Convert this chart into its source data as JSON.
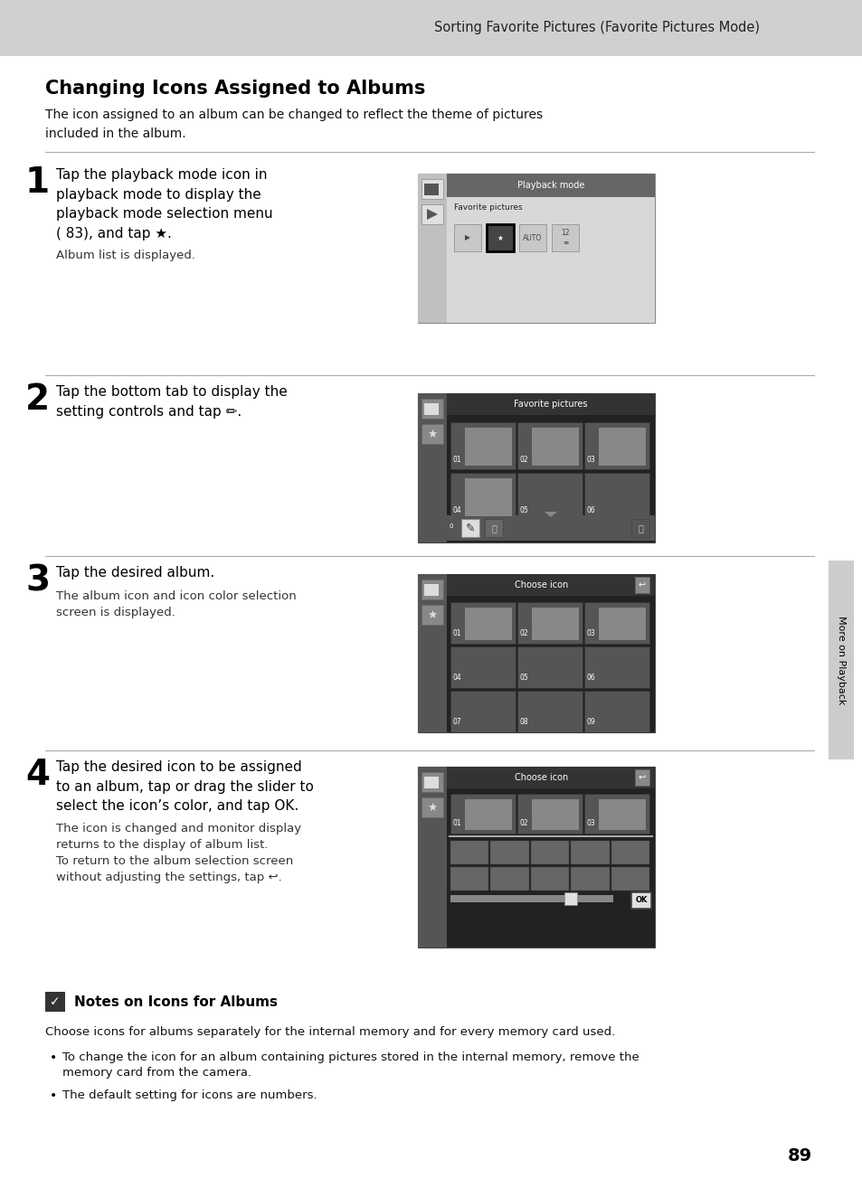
{
  "page_bg": "#ffffff",
  "header_bg": "#d0d0d0",
  "header_text": "Sorting Favorite Pictures (Favorite Pictures Mode)",
  "header_text_color": "#222222",
  "header_text_size": 10.5,
  "title": "Changing Icons Assigned to Albums",
  "title_size": 15,
  "intro_text": "The icon assigned to an album can be changed to reflect the theme of pictures\nincluded in the album.",
  "intro_size": 10.5,
  "steps": [
    {
      "number": "1",
      "main_text": "Tap the playback mode icon in\nplayback mode to display the\nplayback mode selection menu\n( 83), and tap ★.",
      "sub_text": "Album list is displayed.",
      "screen_type": 1
    },
    {
      "number": "2",
      "main_text": "Tap the bottom tab to display the\nsetting controls and tap ✏.",
      "sub_text": "",
      "screen_type": 2
    },
    {
      "number": "3",
      "main_text": "Tap the desired album.",
      "sub_text": "The album icon and icon color selection\nscreen is displayed.",
      "screen_type": 3
    },
    {
      "number": "4",
      "main_text": "Tap the desired icon to be assigned\nto an album, tap or drag the slider to\nselect the icon’s color, and tap OK.",
      "sub_text": "The icon is changed and monitor display\nreturns to the display of album list.\nTo return to the album selection screen\nwithout adjusting the settings, tap ↩.",
      "screen_type": 4
    }
  ],
  "note_title": "Notes on Icons for Albums",
  "note_text": "Choose icons for albums separately for the internal memory and for every memory card used.",
  "note_bullets": [
    "To change the icon for an album containing pictures stored in the internal memory, remove the\nmemory card from the camera.",
    "The default setting for icons are numbers."
  ],
  "page_number": "89",
  "sidebar_text": "More on Playback",
  "divider_color": "#aaaaaa"
}
